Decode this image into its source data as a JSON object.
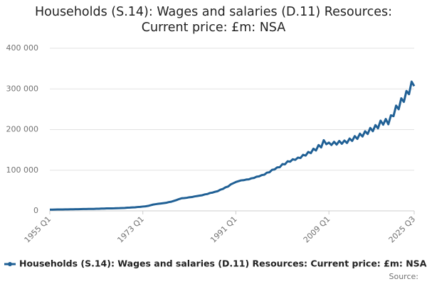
{
  "chart_data": {
    "type": "line",
    "title": "Households (S.14): Wages and salaries (D.11) Resources: Current price: £m: NSA",
    "source": "Source:",
    "categories": [
      "1955 Q1",
      null,
      null,
      null,
      null,
      null,
      null,
      null,
      null,
      null,
      null,
      null,
      null,
      null,
      null,
      null,
      null,
      null,
      null,
      null,
      null,
      null,
      null,
      null,
      null,
      null,
      null,
      null,
      null,
      null,
      null,
      null,
      null,
      null,
      null,
      null,
      "1973 Q1",
      null,
      null,
      null,
      null,
      null,
      null,
      null,
      null,
      null,
      null,
      null,
      null,
      null,
      null,
      null,
      null,
      null,
      null,
      null,
      null,
      null,
      null,
      null,
      null,
      null,
      null,
      null,
      null,
      null,
      null,
      null,
      null,
      null,
      null,
      null,
      "1991 Q1",
      null,
      null,
      null,
      null,
      null,
      null,
      null,
      null,
      null,
      null,
      null,
      null,
      null,
      null,
      null,
      null,
      null,
      null,
      null,
      null,
      null,
      null,
      null,
      null,
      null,
      null,
      null,
      null,
      null,
      null,
      null,
      null,
      null,
      null,
      null,
      "2009 Q1",
      null,
      null,
      null,
      null,
      null,
      null,
      null,
      null,
      null,
      null,
      null,
      null,
      null,
      null,
      null,
      null,
      null,
      null,
      null,
      null,
      null,
      null,
      null,
      null,
      null,
      null,
      null,
      null,
      null,
      null,
      null,
      null,
      "2025 Q3"
    ],
    "series": [
      {
        "name": "Households (S.14): Wages and salaries (D.11) Resources: Current price: £m: NSA",
        "color": "#206095",
        "values": [
          3000,
          3100,
          3300,
          3400,
          3500,
          3600,
          3700,
          3750,
          3850,
          3950,
          4100,
          4200,
          4400,
          4500,
          4600,
          4700,
          4800,
          4900,
          5200,
          5300,
          5600,
          5700,
          6000,
          6100,
          6200,
          6300,
          6600,
          6700,
          7000,
          7200,
          7800,
          8100,
          8600,
          8800,
          9500,
          9900,
          10600,
          11200,
          12200,
          13800,
          15500,
          16500,
          17500,
          18200,
          19000,
          19800,
          21500,
          22500,
          24500,
          26500,
          29000,
          31000,
          31500,
          32200,
          33500,
          34000,
          35500,
          36500,
          37500,
          38500,
          40500,
          41500,
          44000,
          45000,
          47000,
          48500,
          52000,
          54000,
          58000,
          60000,
          65000,
          68000,
          71000,
          73000,
          75000,
          75500,
          77000,
          77500,
          80000,
          81000,
          84000,
          85000,
          88000,
          89000,
          94000,
          95000,
          101000,
          102000,
          107000,
          107500,
          115000,
          114500,
          122000,
          121000,
          127000,
          125500,
          131000,
          130000,
          138000,
          136000,
          145000,
          142000,
          153000,
          148500,
          162000,
          156000,
          174000,
          164000,
          168000,
          162000,
          170000,
          163000,
          172000,
          165000,
          173000,
          167000,
          178000,
          172000,
          184000,
          177000,
          190000,
          183000,
          196000,
          189000,
          204000,
          196000,
          211000,
          203000,
          222000,
          212000,
          226000,
          213000,
          235000,
          233000,
          259000,
          250000,
          277000,
          268000,
          295000,
          287000,
          318000,
          307000
        ]
      }
    ],
    "ylim": [
      0,
      400000
    ],
    "yticks": [
      0,
      {
        "value": 100000,
        "label": "100 000"
      },
      {
        "value": 200000,
        "label": "200 000"
      },
      {
        "value": 300000,
        "label": "300 000"
      },
      {
        "value": 400000,
        "label": "400 000"
      }
    ],
    "grid": true
  }
}
